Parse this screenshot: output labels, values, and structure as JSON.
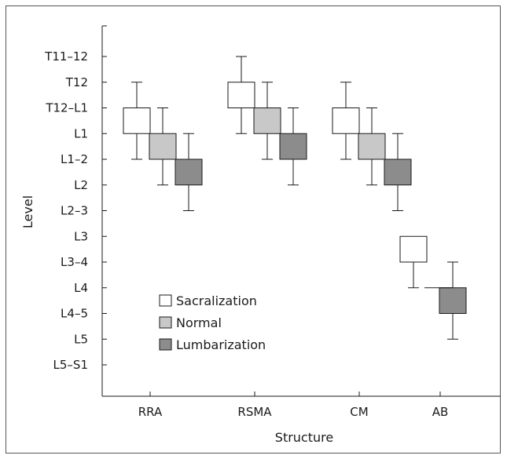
{
  "chart_data": {
    "type": "box",
    "xlabel": "Structure",
    "ylabel": "Level",
    "categories": [
      "RRA",
      "RSMA",
      "CM",
      "AB"
    ],
    "y_levels": [
      "T11–12",
      "T12",
      "T12–L1",
      "L1",
      "L1–2",
      "L2",
      "L2–3",
      "L3",
      "L3–4",
      "L4",
      "L4–5",
      "L5",
      "L5–S1"
    ],
    "legend_position": "lower-left",
    "series": [
      {
        "name": "Sacralization",
        "color": "#ffffff",
        "boxes": [
          {
            "category": "RRA",
            "whisker_low": "L1–2",
            "box_low": "L1",
            "box_high": "T12–L1",
            "whisker_high": "T12"
          },
          {
            "category": "RSMA",
            "whisker_low": "L1",
            "box_low": "T12–L1",
            "box_high": "T12",
            "whisker_high": "T11–12"
          },
          {
            "category": "CM",
            "whisker_low": "L1–2",
            "box_low": "L1",
            "box_high": "T12–L1",
            "whisker_high": "T12"
          },
          {
            "category": "AB",
            "whisker_low": "L4",
            "box_low": "L3–4",
            "box_high": "L3",
            "whisker_high": "L3"
          }
        ]
      },
      {
        "name": "Normal",
        "color": "#c8c8c8",
        "boxes": [
          {
            "category": "RRA",
            "whisker_low": "L2",
            "box_low": "L1–2",
            "box_high": "L1",
            "whisker_high": "T12–L1"
          },
          {
            "category": "RSMA",
            "whisker_low": "L1–2",
            "box_low": "L1",
            "box_high": "T12–L1",
            "whisker_high": "T12"
          },
          {
            "category": "CM",
            "whisker_low": "L2",
            "box_low": "L1–2",
            "box_high": "L1",
            "whisker_high": "T12–L1"
          }
        ]
      },
      {
        "name": "Lumbarization",
        "color": "#8c8c8c",
        "boxes": [
          {
            "category": "RRA",
            "whisker_low": "L2–3",
            "box_low": "L2",
            "box_high": "L1–2",
            "whisker_high": "L1"
          },
          {
            "category": "RSMA",
            "whisker_low": "L2",
            "box_low": "L1–2",
            "box_high": "L1",
            "whisker_high": "T12–L1"
          },
          {
            "category": "CM",
            "whisker_low": "L2–3",
            "box_low": "L2",
            "box_high": "L1–2",
            "whisker_high": "L1"
          },
          {
            "category": "AB",
            "whisker_low": "L5",
            "box_low": "L4–5",
            "box_high": "L4",
            "whisker_high": "L3–4"
          }
        ]
      }
    ]
  }
}
